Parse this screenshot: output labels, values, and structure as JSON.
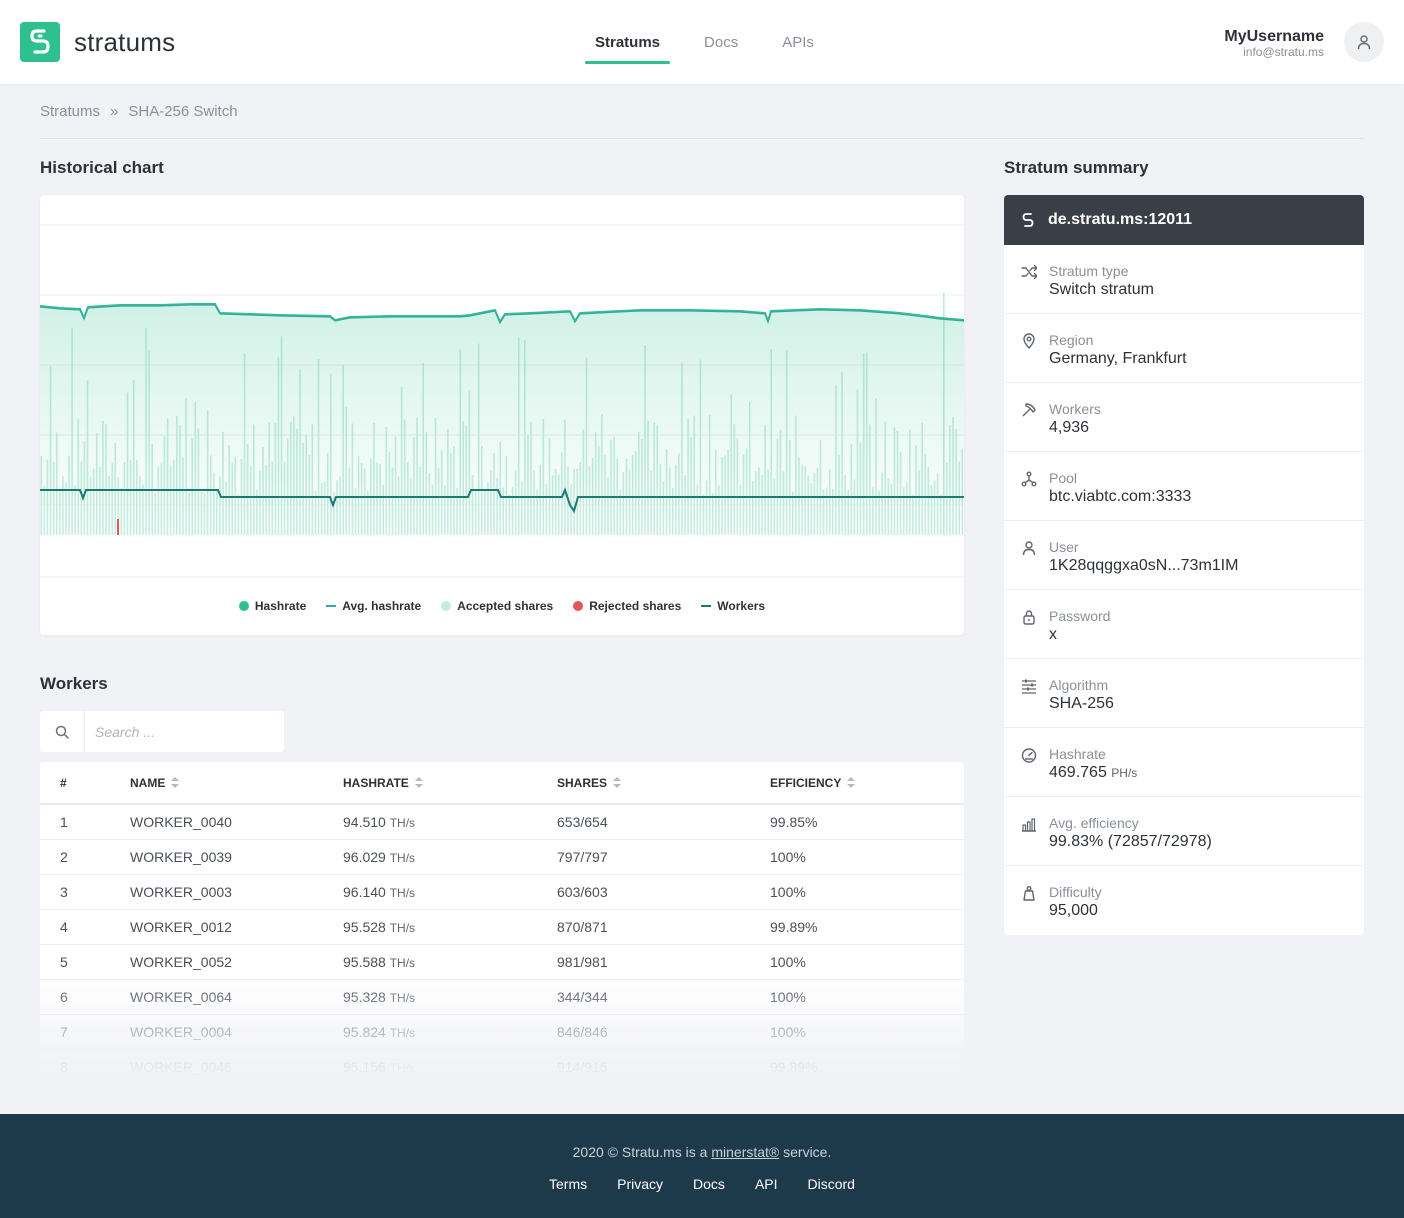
{
  "header": {
    "logo_text": "stratums",
    "nav": [
      {
        "label": "Stratums",
        "active": true
      },
      {
        "label": "Docs",
        "active": false
      },
      {
        "label": "APIs",
        "active": false
      }
    ],
    "user": {
      "name": "MyUsername",
      "email": "info@stratu.ms"
    }
  },
  "breadcrumb": {
    "root": "Stratums",
    "separator": "»",
    "current": "SHA-256 Switch"
  },
  "chart_section": {
    "title": "Historical chart",
    "legend": [
      {
        "label": "Hashrate",
        "color": "#2ec08e",
        "marker": "dot"
      },
      {
        "label": "Avg. hashrate",
        "color": "#3aa7a0",
        "marker": "dash"
      },
      {
        "label": "Accepted shares",
        "color": "#c6ece0",
        "marker": "dot"
      },
      {
        "label": "Rejected shares",
        "color": "#e55656",
        "marker": "dot"
      },
      {
        "label": "Workers",
        "color": "#1b7a72",
        "marker": "dash"
      }
    ]
  },
  "workers_section": {
    "title": "Workers",
    "search_placeholder": "Search ...",
    "columns": [
      "#",
      "NAME",
      "HASHRATE",
      "SHARES",
      "EFFICIENCY"
    ],
    "rows": [
      {
        "idx": "1",
        "name": "WORKER_0040",
        "hashrate": "94.510",
        "unit": "TH/s",
        "shares": "653/654",
        "eff": "99.85%"
      },
      {
        "idx": "2",
        "name": "WORKER_0039",
        "hashrate": "96.029",
        "unit": "TH/s",
        "shares": "797/797",
        "eff": "100%"
      },
      {
        "idx": "3",
        "name": "WORKER_0003",
        "hashrate": "96.140",
        "unit": "TH/s",
        "shares": "603/603",
        "eff": "100%"
      },
      {
        "idx": "4",
        "name": "WORKER_0012",
        "hashrate": "95.528",
        "unit": "TH/s",
        "shares": "870/871",
        "eff": "99.89%"
      },
      {
        "idx": "5",
        "name": "WORKER_0052",
        "hashrate": "95.588",
        "unit": "TH/s",
        "shares": "981/981",
        "eff": "100%"
      },
      {
        "idx": "6",
        "name": "WORKER_0064",
        "hashrate": "95.328",
        "unit": "TH/s",
        "shares": "344/344",
        "eff": "100%"
      },
      {
        "idx": "7",
        "name": "WORKER_0004",
        "hashrate": "95.824",
        "unit": "TH/s",
        "shares": "846/846",
        "eff": "100%"
      },
      {
        "idx": "8",
        "name": "WORKER_0046",
        "hashrate": "95.156",
        "unit": "TH/s",
        "shares": "914/915",
        "eff": "99.89%"
      }
    ]
  },
  "summary": {
    "title": "Stratum summary",
    "host": "de.stratu.ms:12011",
    "items": [
      {
        "icon": "shuffle-icon",
        "label": "Stratum type",
        "value": "Switch stratum",
        "unit": ""
      },
      {
        "icon": "map-pin-icon",
        "label": "Region",
        "value": "Germany, Frankfurt",
        "unit": ""
      },
      {
        "icon": "pickaxe-icon",
        "label": "Workers",
        "value": "4,936",
        "unit": ""
      },
      {
        "icon": "network-icon",
        "label": "Pool",
        "value": "btc.viabtc.com:3333",
        "unit": ""
      },
      {
        "icon": "user-icon",
        "label": "User",
        "value": "1K28qqggxa0sN...73m1IM",
        "unit": ""
      },
      {
        "icon": "lock-icon",
        "label": "Password",
        "value": "x",
        "unit": ""
      },
      {
        "icon": "sliders-icon",
        "label": "Algorithm",
        "value": "SHA-256",
        "unit": ""
      },
      {
        "icon": "gauge-icon",
        "label": "Hashrate",
        "value": "469.765",
        "unit": "PH/s"
      },
      {
        "icon": "bar-chart-icon",
        "label": "Avg. efficiency",
        "value": "99.83% (72857/72978)",
        "unit": ""
      },
      {
        "icon": "weight-icon",
        "label": "Difficulty",
        "value": "95,000",
        "unit": ""
      }
    ]
  },
  "footer": {
    "copy_prefix": "2020 © Stratu.ms is a",
    "copy_link": "minerstat®",
    "copy_suffix": "service.",
    "links": [
      "Terms",
      "Privacy",
      "Docs",
      "API",
      "Discord"
    ]
  },
  "colors": {
    "accent": "#2ec08e",
    "dark": "#3a3f47",
    "footer": "#1d3a4a"
  }
}
